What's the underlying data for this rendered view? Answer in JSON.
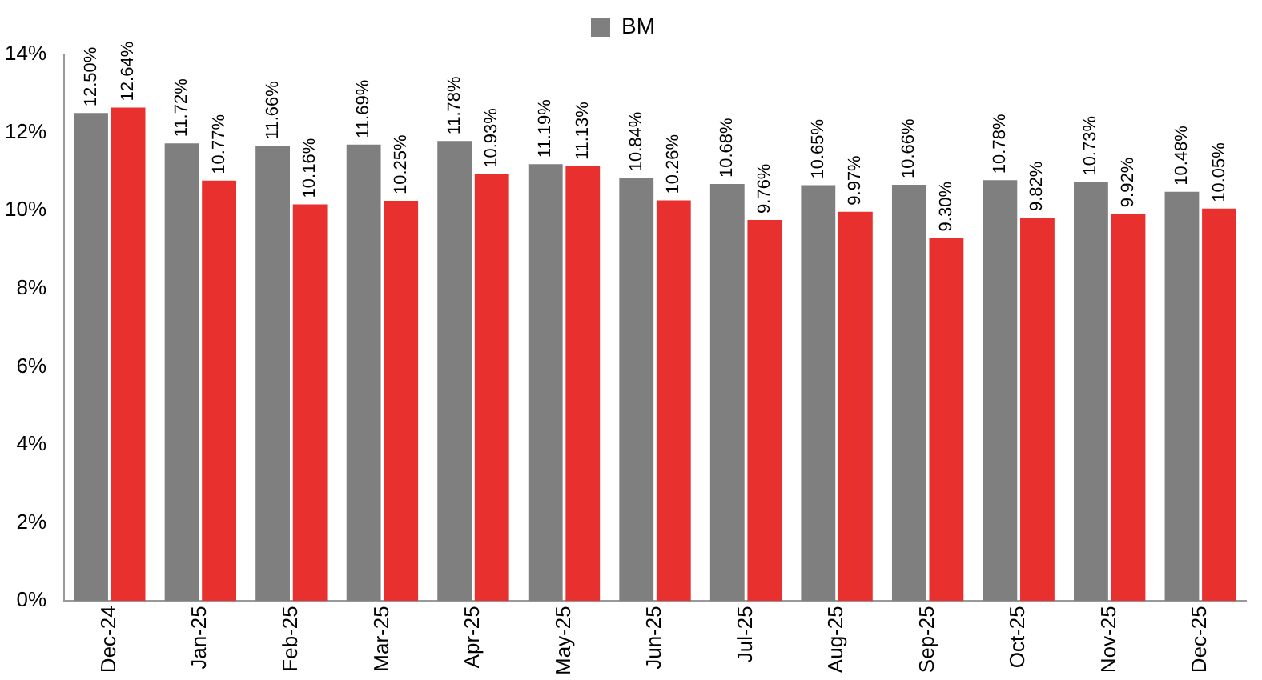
{
  "chart_data": {
    "type": "bar",
    "categories": [
      "Dec-24",
      "Jan-25",
      "Feb-25",
      "Mar-25",
      "Apr-25",
      "May-25",
      "Jun-25",
      "Jul-25",
      "Aug-25",
      "Sep-25",
      "Oct-25",
      "Nov-25",
      "Dec-25"
    ],
    "series": [
      {
        "name": "BM",
        "color": "#7f7f7f",
        "values": [
          12.5,
          11.72,
          11.66,
          11.69,
          11.78,
          11.19,
          10.84,
          10.68,
          10.65,
          10.66,
          10.78,
          10.73,
          10.48
        ],
        "value_labels": [
          "12.50%",
          "11.72%",
          "11.66%",
          "11.69%",
          "11.78%",
          "11.19%",
          "10.84%",
          "10.68%",
          "10.65%",
          "10.66%",
          "10.78%",
          "10.73%",
          "10.48%"
        ]
      },
      {
        "color": "#e8312f",
        "values": [
          12.64,
          10.77,
          10.16,
          10.25,
          10.93,
          11.13,
          10.26,
          9.76,
          9.97,
          9.3,
          9.82,
          9.92,
          10.05
        ],
        "value_labels": [
          "12.64%",
          "10.77%",
          "10.16%",
          "10.25%",
          "10.93%",
          "11.13%",
          "10.26%",
          "9.76%",
          "9.97%",
          "9.30%",
          "9.82%",
          "9.92%",
          "10.05%"
        ]
      }
    ],
    "ylim": [
      0,
      14
    ],
    "yticks": [
      {
        "value": 0,
        "label": "0%"
      },
      {
        "value": 2,
        "label": "2%"
      },
      {
        "value": 4,
        "label": "4%"
      },
      {
        "value": 6,
        "label": "6%"
      },
      {
        "value": 8,
        "label": "8%"
      },
      {
        "value": 10,
        "label": "10%"
      },
      {
        "value": 12,
        "label": "12%"
      },
      {
        "value": 14,
        "label": "14%"
      }
    ],
    "grid": false,
    "legend": "top"
  }
}
